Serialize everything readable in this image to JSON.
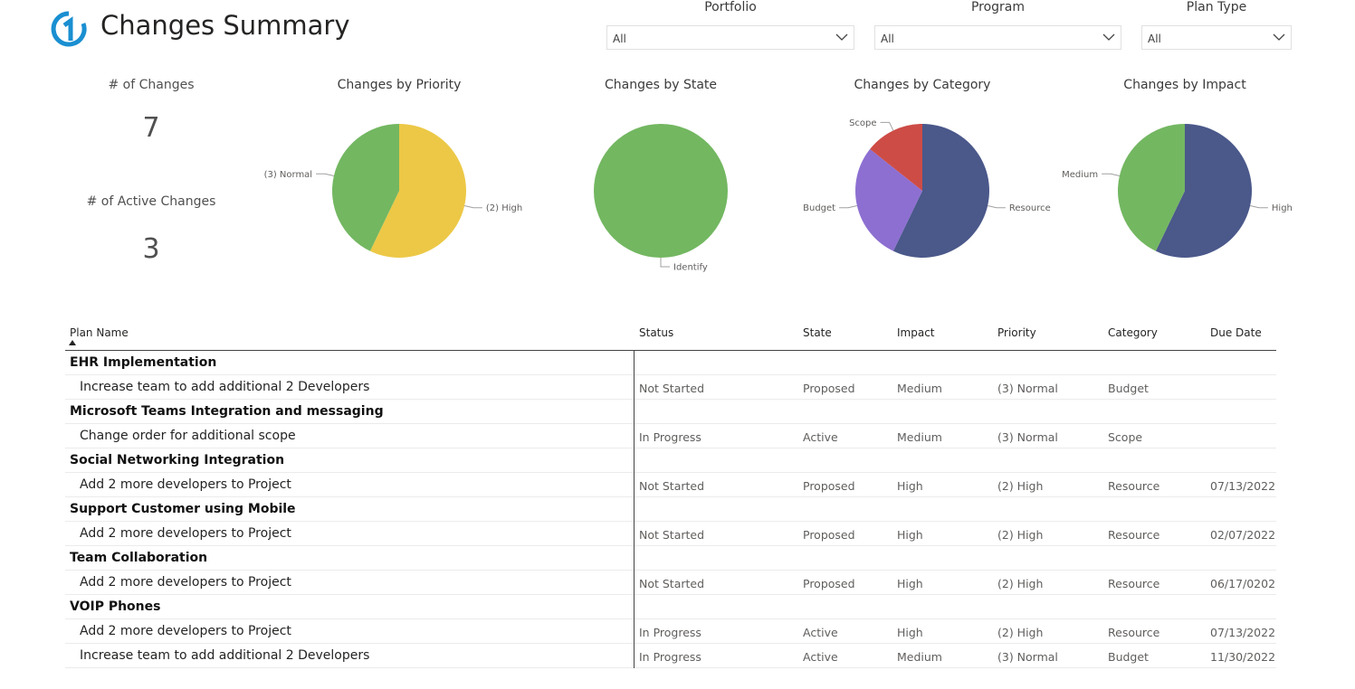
{
  "header": {
    "title": "Changes Summary",
    "logo_icon": "circle-one-logo-icon",
    "brand_color": "#1a8fd1"
  },
  "slicers": [
    {
      "label": "Portfolio",
      "value": "All"
    },
    {
      "label": "Program",
      "value": "All"
    },
    {
      "label": "Plan Type",
      "value": "All"
    }
  ],
  "kpis": {
    "changes": {
      "title": "# of Changes",
      "value": "7"
    },
    "active": {
      "title": "# of Active Changes",
      "value": "3"
    }
  },
  "chart_data": [
    {
      "type": "pie",
      "title": "Changes by Priority",
      "categories": [
        "(2) High",
        "(3) Normal"
      ],
      "values": [
        4,
        3
      ],
      "colors": [
        "#ecc846",
        "#73b761"
      ]
    },
    {
      "type": "pie",
      "title": "Changes by State",
      "categories": [
        "Identify"
      ],
      "values": [
        7
      ],
      "colors": [
        "#73b761"
      ]
    },
    {
      "type": "pie",
      "title": "Changes by Category",
      "categories": [
        "Resource",
        "Budget",
        "Scope"
      ],
      "values": [
        4,
        2,
        1
      ],
      "colors": [
        "#4a588a",
        "#8d6fd1",
        "#cd4c46"
      ]
    },
    {
      "type": "pie",
      "title": "Changes by Impact",
      "categories": [
        "High",
        "Medium"
      ],
      "values": [
        4,
        3
      ],
      "colors": [
        "#4a588a",
        "#73b761"
      ]
    }
  ],
  "table": {
    "columns": [
      "Plan Name",
      "Status",
      "State",
      "Impact",
      "Priority",
      "Category",
      "Due Date"
    ],
    "groups": [
      {
        "name": "EHR Implementation",
        "rows": [
          [
            "Increase team to add additional 2 Developers",
            "Not Started",
            "Proposed",
            "Medium",
            "(3) Normal",
            "Budget",
            ""
          ]
        ]
      },
      {
        "name": "Microsoft Teams Integration and messaging",
        "rows": [
          [
            "Change order for additional scope",
            "In Progress",
            "Active",
            "Medium",
            "(3) Normal",
            "Scope",
            ""
          ]
        ]
      },
      {
        "name": "Social Networking Integration",
        "rows": [
          [
            "Add 2 more developers to Project",
            "Not Started",
            "Proposed",
            "High",
            "(2) High",
            "Resource",
            "07/13/2022"
          ]
        ]
      },
      {
        "name": "Support Customer using Mobile",
        "rows": [
          [
            "Add 2 more developers to Project",
            "Not Started",
            "Proposed",
            "High",
            "(2) High",
            "Resource",
            "02/07/2022"
          ]
        ]
      },
      {
        "name": "Team Collaboration",
        "rows": [
          [
            "Add 2 more developers to Project",
            "Not Started",
            "Proposed",
            "High",
            "(2) High",
            "Resource",
            "06/17/0202"
          ]
        ]
      },
      {
        "name": "VOIP Phones",
        "rows": [
          [
            "Add 2 more developers to Project",
            "In Progress",
            "Active",
            "High",
            "(2) High",
            "Resource",
            "07/13/2022"
          ],
          [
            "Increase team to add additional 2 Developers",
            "In Progress",
            "Active",
            "Medium",
            "(3) Normal",
            "Budget",
            "11/30/2022"
          ]
        ]
      }
    ]
  }
}
